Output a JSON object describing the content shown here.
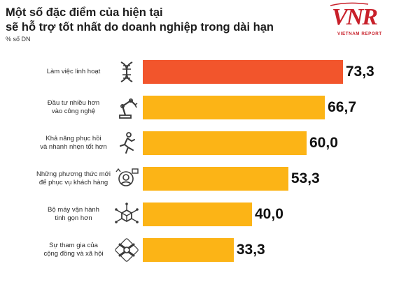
{
  "header": {
    "title_line1": "Một số đặc điểm của hiện tại",
    "title_line2": "sẽ hỗ trợ tốt nhất do doanh nghiệp trong dài hạn",
    "unit": "% số DN"
  },
  "logo": {
    "mark": "VNR",
    "caption": "VIETNAM REPORT",
    "color": "#c8202a"
  },
  "colors": {
    "highlight": "#f2552c",
    "bar": "#fcb416",
    "icon": "#3a3a3a"
  },
  "chart_data": {
    "type": "bar",
    "orientation": "horizontal",
    "title": "Một số đặc điểm của hiện tại sẽ hỗ trợ tốt nhất do doanh nghiệp trong dài hạn",
    "ylabel": "% số DN",
    "categories": [
      "Làm việc linh hoạt",
      "Đầu tư nhiều hơn\nvào công nghệ",
      "Khả năng phục hồi\nvà nhanh nhẹn tốt hơn",
      "Những phương thức mới\nđể phục vụ khách hàng",
      "Bộ máy vận hành\ntinh gọn hơn",
      "Sự tham gia của\ncộng đồng và xã hội"
    ],
    "values": [
      73.3,
      66.7,
      60.0,
      53.3,
      40.0,
      33.3
    ],
    "value_labels": [
      "73,3",
      "66,7",
      "60,0",
      "53,3",
      "40,0",
      "33,3"
    ],
    "icons": [
      "dna-icon",
      "robot-arm-icon",
      "running-person-icon",
      "customer-service-icon",
      "network-cube-icon",
      "handshake-icon"
    ],
    "highlight_index": 0,
    "xlim": [
      0,
      100
    ],
    "grid": false,
    "legend": "none"
  }
}
